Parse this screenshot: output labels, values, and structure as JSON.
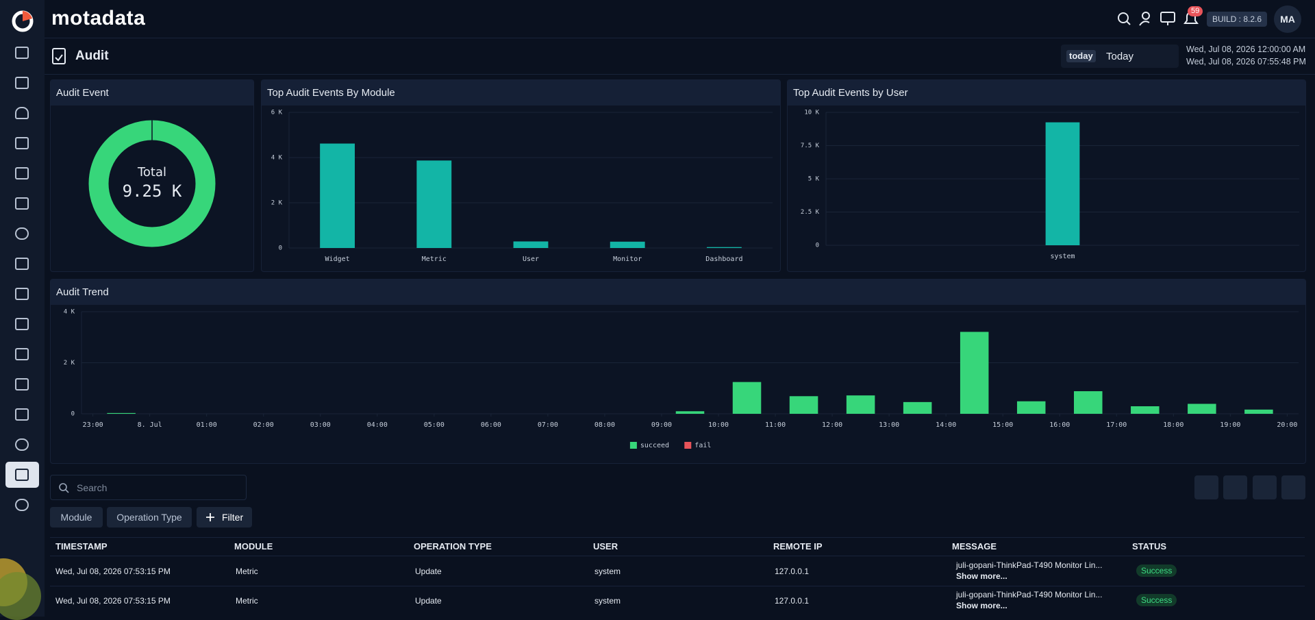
{
  "app": {
    "logo": "motadata"
  },
  "header": {
    "notifications": "59",
    "build": "BUILD : 8.2.6",
    "avatar": "MA"
  },
  "page": {
    "title": "Audit",
    "range_chip": "today",
    "range": "Today",
    "from": "Wed, Jul 08, 2026 12:00:00 AM",
    "to": "Wed, Jul 08, 2026 07:55:48 PM"
  },
  "chart_data": [
    {
      "type": "donut",
      "title": "Audit Event",
      "center_label": "Total",
      "values": [
        9250
      ],
      "value_labels": [
        "9.25 K"
      ],
      "color": "#37d67a"
    },
    {
      "type": "bar",
      "title": "Top Audit Events By Module",
      "categories": [
        "Widget",
        "Metric",
        "User",
        "Monitor",
        "Dashboard"
      ],
      "values": [
        4620,
        3870,
        290,
        280,
        40
      ],
      "color": "#13b5a6",
      "ylim": [
        0,
        6000
      ],
      "yticks": [
        0,
        {
          "value": 2000,
          "label": "2 K"
        },
        {
          "value": 4000,
          "label": "4 K"
        },
        {
          "value": 6000,
          "label": "6 K"
        }
      ],
      "grid": true
    },
    {
      "type": "bar",
      "title": "Top Audit Events by User",
      "categories": [
        "system"
      ],
      "values": [
        9250
      ],
      "color": "#13b5a6",
      "ylim": [
        0,
        10000
      ],
      "yticks": [
        0,
        {
          "value": 2500,
          "label": "2.5 K"
        },
        {
          "value": 5000,
          "label": "5 K"
        },
        {
          "value": 7500,
          "label": "7.5 K"
        },
        {
          "value": 10000,
          "label": "10 K"
        }
      ],
      "grid": true
    },
    {
      "type": "stacked-bar",
      "title": "Audit Trend",
      "x": [
        0.5,
        10.5,
        11.5,
        12.5,
        13.5,
        14.5,
        15.5,
        16.5,
        17.5,
        18.5,
        19.5,
        20.5
      ],
      "series": [
        {
          "name": "succeed",
          "color": "#37d67a",
          "values": [
            30,
            100,
            1245,
            690,
            720,
            460,
            3210,
            490,
            885,
            295,
            390,
            165
          ]
        },
        {
          "name": "fail",
          "color": "#e8545a",
          "values": [
            0,
            0,
            0,
            0,
            0,
            0,
            0,
            0,
            0,
            0,
            0,
            0
          ]
        }
      ],
      "xlim": [
        -0.2,
        21.2
      ],
      "xticks": [
        {
          "value": 0,
          "label": "23:00"
        },
        {
          "value": 1,
          "label": "8. Jul"
        },
        {
          "value": 2,
          "label": "01:00"
        },
        {
          "value": 3,
          "label": "02:00"
        },
        {
          "value": 4,
          "label": "03:00"
        },
        {
          "value": 5,
          "label": "04:00"
        },
        {
          "value": 6,
          "label": "05:00"
        },
        {
          "value": 7,
          "label": "06:00"
        },
        {
          "value": 8,
          "label": "07:00"
        },
        {
          "value": 9,
          "label": "08:00"
        },
        {
          "value": 10,
          "label": "09:00"
        },
        {
          "value": 11,
          "label": "10:00"
        },
        {
          "value": 12,
          "label": "11:00"
        },
        {
          "value": 13,
          "label": "12:00"
        },
        {
          "value": 14,
          "label": "13:00"
        },
        {
          "value": 15,
          "label": "14:00"
        },
        {
          "value": 16,
          "label": "15:00"
        },
        {
          "value": 17,
          "label": "16:00"
        },
        {
          "value": 18,
          "label": "17:00"
        },
        {
          "value": 19,
          "label": "18:00"
        },
        {
          "value": 20,
          "label": "19:00"
        },
        {
          "value": 21,
          "label": "20:00"
        }
      ],
      "ylim": [
        0,
        4000
      ],
      "yticks": [
        0,
        {
          "value": 2000,
          "label": "2 K"
        },
        {
          "value": 4000,
          "label": "4 K"
        }
      ],
      "grid": true,
      "legend": "bottom"
    }
  ],
  "toolbar": {
    "search_placeholder": "Search",
    "chips": [
      "Module",
      "Operation Type"
    ],
    "filter": "Filter"
  },
  "table": {
    "columns": [
      "TIMESTAMP",
      "MODULE",
      "OPERATION TYPE",
      "USER",
      "REMOTE IP",
      "MESSAGE",
      "STATUS"
    ],
    "rows": [
      [
        "Wed, Jul 08, 2026 07:53:15 PM",
        "Metric",
        "Update",
        "system",
        "127.0.0.1",
        "juli-gopani-ThinkPad-T490 Monitor Lin...",
        "Success"
      ],
      [
        "Wed, Jul 08, 2026 07:53:15 PM",
        "Metric",
        "Update",
        "system",
        "127.0.0.1",
        "juli-gopani-ThinkPad-T490 Monitor Lin...",
        "Success"
      ]
    ],
    "show_more": "Show more..."
  }
}
